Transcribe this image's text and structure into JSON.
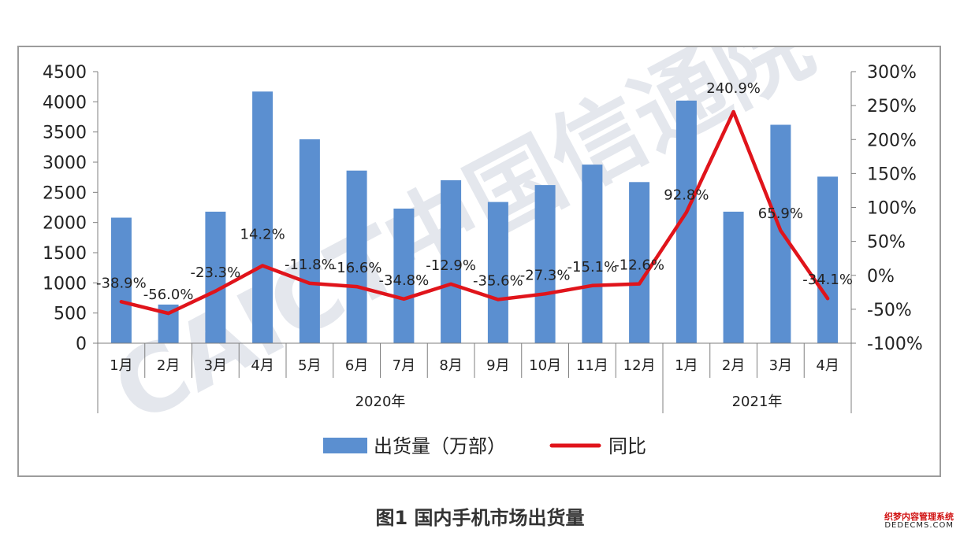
{
  "chart_data": {
    "type": "bar",
    "categories": [
      "1月",
      "2月",
      "3月",
      "4月",
      "5月",
      "6月",
      "7月",
      "8月",
      "9月",
      "10月",
      "11月",
      "12月",
      "1月",
      "2月",
      "3月",
      "4月"
    ],
    "groups": [
      {
        "label": "2020年",
        "count": 12
      },
      {
        "label": "2021年",
        "count": 4
      }
    ],
    "series": [
      {
        "name": "出货量（万部）",
        "type": "bar",
        "axis": "left",
        "values": [
          2080,
          640,
          2180,
          4170,
          3380,
          2860,
          2230,
          2700,
          2340,
          2620,
          2960,
          2670,
          4020,
          2180,
          3620,
          2760
        ]
      },
      {
        "name": "同比",
        "type": "line",
        "axis": "right",
        "values": [
          -38.9,
          -56.0,
          -23.3,
          14.2,
          -11.8,
          -16.6,
          -34.8,
          -12.9,
          -35.6,
          -27.3,
          -15.1,
          -12.6,
          92.8,
          240.9,
          65.9,
          -34.1
        ],
        "labels": [
          "-38.9%",
          "-56.0%",
          "-23.3%",
          "14.2%",
          "-11.8%",
          "-16.6%",
          "-34.8%",
          "-12.9%",
          "-35.6%",
          "-27.3%",
          "-15.1%",
          "-12.6%",
          "92.8%",
          "240.9%",
          "65.9%",
          "-34.1%"
        ]
      }
    ],
    "y_left": {
      "ylim": [
        0,
        4500
      ],
      "ticks": [
        "0",
        "500",
        "1000",
        "1500",
        "2000",
        "2500",
        "3000",
        "3500",
        "4000",
        "4500"
      ]
    },
    "y_right": {
      "ylim": [
        -100,
        300
      ],
      "ticks": [
        "-100%",
        "-50%",
        "0%",
        "50%",
        "100%",
        "150%",
        "200%",
        "250%",
        "300%"
      ]
    },
    "legend": {
      "position": "bottom"
    },
    "grid": false,
    "colors": {
      "bar": "#5b8fd0",
      "line": "#e0141b"
    }
  },
  "watermark": "CAICT中国信通院",
  "caption": "图1   国内手机市场出货量",
  "site_mark": {
    "line1": "织梦内容管理系统",
    "line2": "DEDECMS.COM"
  }
}
